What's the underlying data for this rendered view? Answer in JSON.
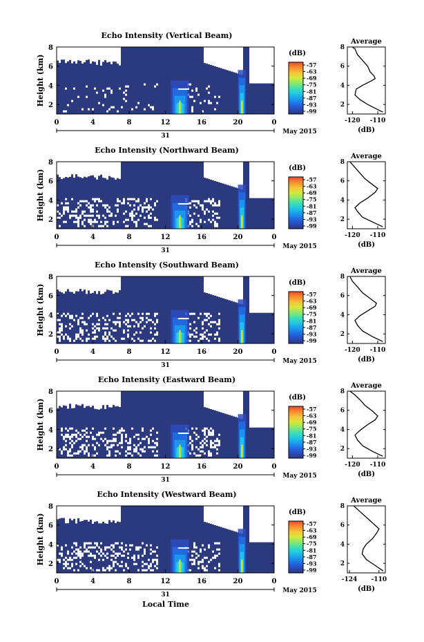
{
  "figure": {
    "x_axis_title": "Local Time",
    "date_label": "May 2015",
    "day_label": "31",
    "colorbar_unit": "(dB)",
    "colorbar_ticks": [
      "-57",
      "-63",
      "-69",
      "-75",
      "-81",
      "-87",
      "-93",
      "-99"
    ],
    "colorbar_colors": [
      "#2b3a7e",
      "#2a4cbf",
      "#1f6fe6",
      "#1aa0ee",
      "#22c9e0",
      "#3fe0b0",
      "#8fe86a",
      "#d8e83a",
      "#f6c23a",
      "#f78a2e",
      "#ee4b2b"
    ],
    "background_color": "#2b3a7e"
  },
  "chart_data": [
    {
      "type": "heatmap",
      "title": "Echo Intensity (Vertical Beam)",
      "xlabel": "",
      "ylabel": "Height (km)",
      "xlim": [
        0,
        24
      ],
      "ylim": [
        1,
        8
      ],
      "x_ticks": [
        "0",
        "4",
        "8",
        "12",
        "16",
        "20",
        "0"
      ],
      "y_ticks": [
        "2",
        "4",
        "6",
        "8"
      ],
      "profile": {
        "title": "Average",
        "xlabel": "(dB)",
        "xlim": [
          -122,
          -107
        ],
        "x_ticks": [
          "-120",
          "-110"
        ],
        "y_ticks": [
          "2",
          "4",
          "6",
          "8"
        ],
        "points": [
          [
            -108,
            1.2
          ],
          [
            -111,
            1.6
          ],
          [
            -114,
            2.0
          ],
          [
            -117,
            2.5
          ],
          [
            -119,
            3.0
          ],
          [
            -118.5,
            3.6
          ],
          [
            -116,
            4.0
          ],
          [
            -113,
            4.4
          ],
          [
            -111,
            4.7
          ],
          [
            -111.5,
            5.0
          ],
          [
            -113,
            5.4
          ],
          [
            -114,
            6.0
          ],
          [
            -116,
            6.6
          ],
          [
            -118,
            7.2
          ],
          [
            -119,
            7.8
          ],
          [
            -120,
            8.0
          ]
        ]
      }
    },
    {
      "type": "heatmap",
      "title": "Echo Intensity (Northward Beam)",
      "xlabel": "",
      "ylabel": "Height (km)",
      "xlim": [
        0,
        24
      ],
      "ylim": [
        1,
        8
      ],
      "x_ticks": [
        "0",
        "4",
        "8",
        "12",
        "16",
        "20",
        "0"
      ],
      "y_ticks": [
        "2",
        "4",
        "6",
        "8"
      ],
      "profile": {
        "title": "Average",
        "xlabel": "(dB)",
        "xlim": [
          -122,
          -107
        ],
        "x_ticks": [
          "-120",
          "-110"
        ],
        "y_ticks": [
          "2",
          "4",
          "6",
          "8"
        ],
        "points": [
          [
            -108,
            1.2
          ],
          [
            -112,
            1.7
          ],
          [
            -116,
            2.2
          ],
          [
            -118,
            2.8
          ],
          [
            -119,
            3.2
          ],
          [
            -117,
            3.7
          ],
          [
            -114,
            4.2
          ],
          [
            -111,
            4.8
          ],
          [
            -110,
            5.2
          ],
          [
            -112,
            5.6
          ],
          [
            -115,
            6.2
          ],
          [
            -117,
            6.8
          ],
          [
            -119,
            7.4
          ],
          [
            -121,
            8.0
          ]
        ]
      }
    },
    {
      "type": "heatmap",
      "title": "Echo Intensity (Southward Beam)",
      "xlabel": "",
      "ylabel": "Height (km)",
      "xlim": [
        0,
        24
      ],
      "ylim": [
        1,
        8
      ],
      "x_ticks": [
        "0",
        "4",
        "8",
        "12",
        "16",
        "20",
        "0"
      ],
      "y_ticks": [
        "2",
        "4",
        "6",
        "8"
      ],
      "profile": {
        "title": "Average",
        "xlabel": "(dB)",
        "xlim": [
          -122,
          -107
        ],
        "x_ticks": [
          "-120",
          "-110"
        ],
        "y_ticks": [
          "2",
          "4",
          "6",
          "8"
        ],
        "points": [
          [
            -108,
            1.2
          ],
          [
            -112,
            1.7
          ],
          [
            -116,
            2.3
          ],
          [
            -118,
            2.9
          ],
          [
            -119,
            3.4
          ],
          [
            -117,
            3.9
          ],
          [
            -114,
            4.4
          ],
          [
            -111,
            4.9
          ],
          [
            -110.5,
            5.2
          ],
          [
            -113,
            5.7
          ],
          [
            -116,
            6.3
          ],
          [
            -118,
            6.9
          ],
          [
            -120,
            7.5
          ],
          [
            -121,
            8.0
          ]
        ]
      }
    },
    {
      "type": "heatmap",
      "title": "Echo Intensity (Eastward Beam)",
      "xlabel": "",
      "ylabel": "Height (km)",
      "xlim": [
        0,
        24
      ],
      "ylim": [
        1,
        8
      ],
      "x_ticks": [
        "0",
        "4",
        "8",
        "12",
        "16",
        "20",
        "0"
      ],
      "y_ticks": [
        "2",
        "4",
        "6",
        "8"
      ],
      "profile": {
        "title": "Average",
        "xlabel": "(dB)",
        "xlim": [
          -122,
          -107
        ],
        "x_ticks": [
          "-120",
          "-110"
        ],
        "y_ticks": [
          "2",
          "4",
          "6",
          "8"
        ],
        "points": [
          [
            -108,
            1.2
          ],
          [
            -112,
            1.7
          ],
          [
            -116,
            2.3
          ],
          [
            -118,
            2.9
          ],
          [
            -119,
            3.4
          ],
          [
            -117,
            3.9
          ],
          [
            -114,
            4.5
          ],
          [
            -111,
            5.0
          ],
          [
            -110,
            5.4
          ],
          [
            -112,
            5.9
          ],
          [
            -115,
            6.5
          ],
          [
            -117,
            7.1
          ],
          [
            -119,
            7.6
          ],
          [
            -121,
            8.0
          ]
        ]
      }
    },
    {
      "type": "heatmap",
      "title": "Echo Intensity (Westward Beam)",
      "xlabel": "",
      "ylabel": "Height (km)",
      "xlim": [
        0,
        24
      ],
      "ylim": [
        1,
        8
      ],
      "x_ticks": [
        "0",
        "4",
        "8",
        "12",
        "16",
        "20",
        "0"
      ],
      "y_ticks": [
        "2",
        "4",
        "6",
        "8"
      ],
      "profile": {
        "title": "Average",
        "xlabel": "(dB)",
        "xlim": [
          -125,
          -107
        ],
        "x_ticks": [
          "-124",
          "-110"
        ],
        "y_ticks": [
          "2",
          "4",
          "6",
          "8"
        ],
        "points": [
          [
            -108,
            1.2
          ],
          [
            -112,
            1.8
          ],
          [
            -116,
            2.4
          ],
          [
            -118,
            3.0
          ],
          [
            -117.5,
            3.5
          ],
          [
            -116,
            4.0
          ],
          [
            -113,
            4.6
          ],
          [
            -111,
            5.2
          ],
          [
            -110,
            5.6
          ],
          [
            -113,
            6.2
          ],
          [
            -116,
            6.8
          ],
          [
            -119,
            7.4
          ],
          [
            -122,
            8.0
          ]
        ]
      }
    }
  ]
}
